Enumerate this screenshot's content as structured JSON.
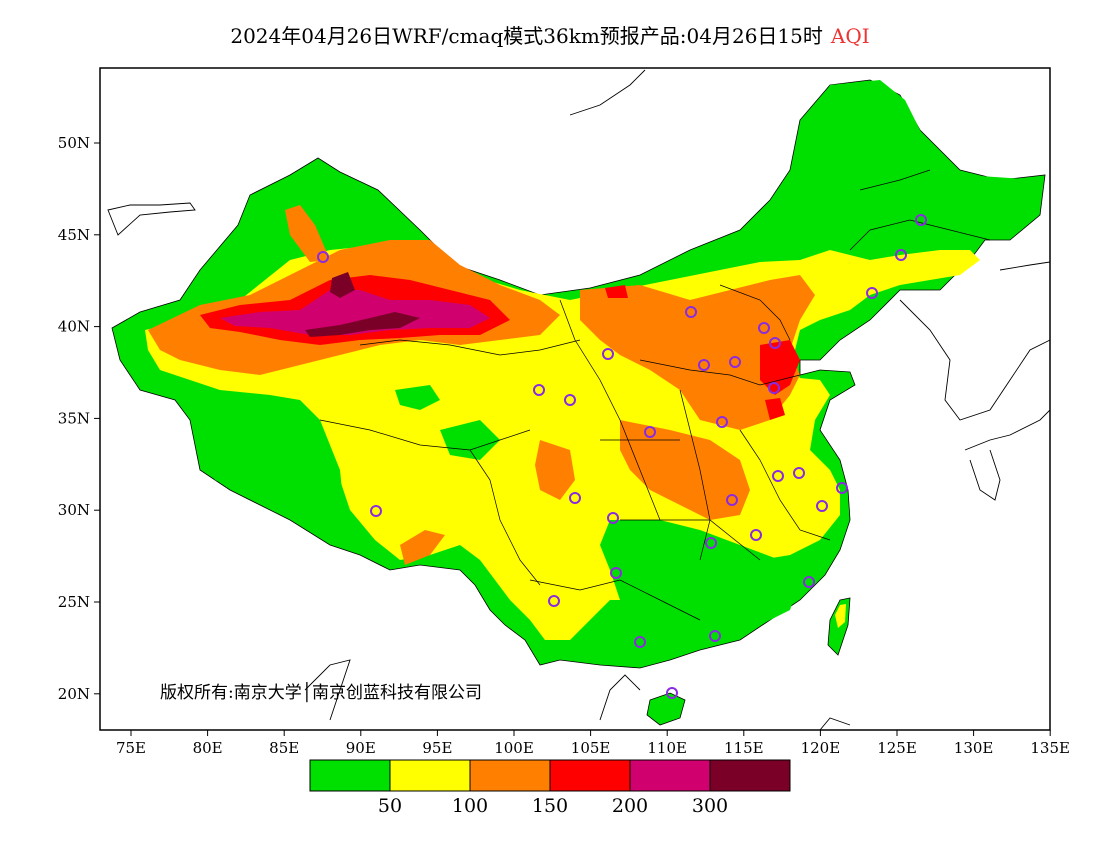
{
  "title": {
    "main": "2024年04月26日WRF/cmaq模式36km预报产品:04月26日15时",
    "variable": "AQI"
  },
  "copyright": "版权所有:南京大学│南京创蓝科技有限公司",
  "axes": {
    "lon_labels": [
      "75E",
      "80E",
      "85E",
      "90E",
      "95E",
      "100E",
      "105E",
      "110E",
      "115E",
      "120E",
      "125E",
      "130E",
      "135E"
    ],
    "lat_labels": [
      "50N",
      "45N",
      "40N",
      "35N",
      "30N",
      "25N",
      "20N"
    ]
  },
  "legend": {
    "colors": [
      "#00e000",
      "#ffff00",
      "#ff8000",
      "#ff0000",
      "#d0006e",
      "#7b0027"
    ],
    "labels": [
      "50",
      "100",
      "150",
      "200",
      "300"
    ]
  },
  "colors": {
    "good": "#00e000",
    "moderate": "#ffff00",
    "unhealthy_sensitive": "#ff8000",
    "unhealthy": "#ff0000",
    "very_unhealthy": "#d0006e",
    "hazardous": "#7b0027",
    "station_marker": "#8a2be2"
  }
}
